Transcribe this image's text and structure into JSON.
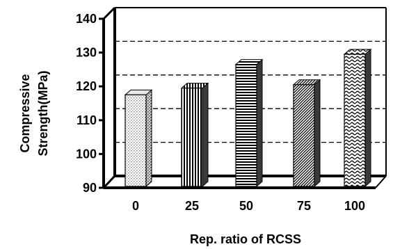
{
  "chart_data": {
    "type": "bar",
    "categories": [
      "0",
      "25",
      "50",
      "75",
      "100"
    ],
    "values": [
      117.5,
      119.5,
      126.5,
      120.5,
      129.5
    ],
    "xlabel": "Rep. ratio of RCSS",
    "ylabel_lines": [
      "Compressive",
      "Strength(MPa)"
    ],
    "ylim": [
      90,
      140
    ],
    "yticks": [
      "90",
      "100",
      "110",
      "120",
      "130",
      "140"
    ],
    "grid": "dashed horizontal on back wall",
    "bar_fill_patterns": [
      "dots",
      "vertical-lines",
      "horizontal-lines",
      "diagonal-lines",
      "waves"
    ],
    "style": "3D column"
  }
}
